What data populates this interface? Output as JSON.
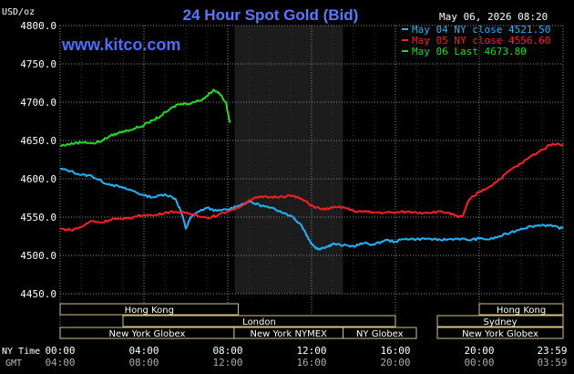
{
  "chart_data": {
    "type": "line",
    "title": "24 Hour Spot Gold (Bid)",
    "watermark": "www.kitco.com",
    "timestamp": "May 06, 2026 08:20",
    "ylabel": "USD/oz",
    "ylim": [
      4450,
      4800
    ],
    "yticks": [
      "4800.0",
      "4750.0",
      "4700.0",
      "4650.0",
      "4600.0",
      "4550.0",
      "4500.0",
      "4450.0"
    ],
    "ytick_values": [
      4800,
      4750,
      4700,
      4650,
      4600,
      4550,
      4500,
      4450
    ],
    "xlim": [
      0,
      24
    ],
    "x_axis_label_ny": "NY Time",
    "x_axis_label_gmt": "GMT",
    "xticks_ny": [
      "00:00",
      "04:00",
      "08:00",
      "12:00",
      "16:00",
      "20:00",
      "23:59"
    ],
    "xticks_gmt": [
      "04:00",
      "08:00",
      "12:00",
      "16:00",
      "20:00",
      "00:00",
      "03:59"
    ],
    "xtick_hours": [
      0,
      4,
      8,
      12,
      16,
      20,
      24
    ],
    "nymex_shade_hours": [
      8.33,
      13.5
    ],
    "grid": true,
    "legend_position": "top-right",
    "series": [
      {
        "name": "May 04 NY close 4521.50",
        "color": "#1EB4FF",
        "x": [
          0,
          0.5,
          1,
          1.5,
          2,
          2.5,
          3,
          3.5,
          4,
          4.5,
          5,
          5.5,
          5.8,
          6,
          6.2,
          6.5,
          7,
          7.5,
          8,
          8.5,
          9,
          9.5,
          10,
          10.5,
          11,
          11.5,
          11.8,
          12,
          12.3,
          12.5,
          12.8,
          13,
          13.5,
          14,
          14.5,
          15,
          15.5,
          16,
          16.5,
          17,
          17.5,
          18,
          18.5,
          19,
          19.5,
          20,
          20.5,
          21,
          21.5,
          22,
          22.5,
          23,
          23.5,
          24
        ],
        "y": [
          4613,
          4610,
          4605,
          4604,
          4596,
          4592,
          4588,
          4584,
          4578,
          4576,
          4580,
          4574,
          4555,
          4535,
          4548,
          4556,
          4562,
          4558,
          4560,
          4565,
          4570,
          4566,
          4562,
          4558,
          4552,
          4540,
          4525,
          4515,
          4508,
          4510,
          4512,
          4515,
          4513,
          4512,
          4516,
          4514,
          4520,
          4518,
          4522,
          4521,
          4522,
          4520,
          4521,
          4522,
          4520,
          4522,
          4521,
          4525,
          4530,
          4535,
          4538,
          4540,
          4538,
          4535
        ]
      },
      {
        "name": "May 05 NY close 4556.60",
        "color": "#FF1E1E",
        "x": [
          0,
          0.5,
          1,
          1.5,
          2,
          2.5,
          3,
          3.5,
          4,
          4.5,
          5,
          5.5,
          6,
          6.5,
          7,
          7.5,
          8,
          8.5,
          9,
          9.5,
          10,
          10.5,
          11,
          11.5,
          12,
          12.5,
          13,
          13.5,
          14,
          14.5,
          15,
          15.5,
          16,
          16.5,
          17,
          17.5,
          18,
          18.5,
          19,
          19.2,
          19.5,
          20,
          20.5,
          21,
          21.5,
          22,
          22.5,
          23,
          23.5,
          24
        ],
        "y": [
          4535,
          4533,
          4537,
          4545,
          4543,
          4548,
          4547,
          4550,
          4553,
          4552,
          4556,
          4557,
          4555,
          4553,
          4549,
          4552,
          4558,
          4562,
          4572,
          4576,
          4576,
          4577,
          4578,
          4574,
          4565,
          4560,
          4562,
          4563,
          4558,
          4557,
          4556,
          4556,
          4556,
          4557,
          4556,
          4556,
          4557,
          4556,
          4550,
          4551,
          4572,
          4583,
          4590,
          4600,
          4612,
          4620,
          4630,
          4638,
          4646,
          4644
        ]
      },
      {
        "name": "May 06 Last 4673.80",
        "color": "#1EDC1E",
        "x": [
          0,
          0.4,
          0.8,
          1.2,
          1.6,
          2,
          2.4,
          2.8,
          3.2,
          3.6,
          4,
          4.4,
          4.8,
          5.2,
          5.6,
          6,
          6.4,
          6.8,
          7,
          7.3,
          7.6,
          7.9,
          8.1
        ],
        "y": [
          4643,
          4645,
          4647,
          4648,
          4646,
          4650,
          4656,
          4660,
          4663,
          4666,
          4670,
          4676,
          4682,
          4690,
          4697,
          4698,
          4700,
          4704,
          4708,
          4716,
          4712,
          4700,
          4673
        ]
      }
    ],
    "sessions": [
      {
        "label": "Hong Kong",
        "row": 0,
        "start": 0,
        "end": 8.5
      },
      {
        "label": "London",
        "row": 1,
        "start": 3,
        "end": 16
      },
      {
        "label": "New York Globex",
        "row": 2,
        "start": 0,
        "end": 8.3
      },
      {
        "label": "New York NYMEX",
        "row": 2,
        "start": 8.3,
        "end": 13.5
      },
      {
        "label": "NY Globex",
        "row": 2,
        "start": 13.5,
        "end": 17
      },
      {
        "label": "Hong Kong",
        "row": 0,
        "start": 20,
        "end": 24
      },
      {
        "label": "Sydney",
        "row": 1,
        "start": 18,
        "end": 24
      },
      {
        "label": "New York Globex",
        "row": 2,
        "start": 18,
        "end": 24
      }
    ]
  }
}
